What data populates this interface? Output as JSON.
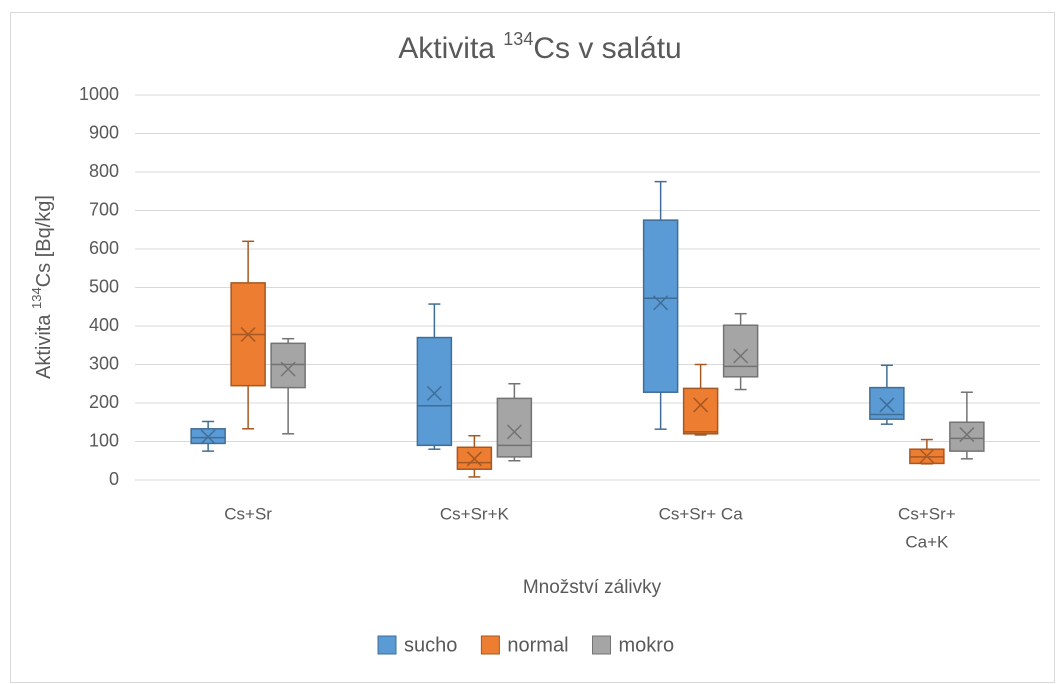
{
  "chart_data": {
    "type": "box",
    "title": {
      "text": "Aktivita ",
      "sup": "134",
      "rest": "Cs v salátu"
    },
    "y_label": {
      "text": "Aktivita ",
      "sup": "134",
      "rest": "Cs [Bq/kg]"
    },
    "x_label": "Množství zálivky",
    "categories": [
      [
        "Cs+Sr"
      ],
      [
        "Cs+Sr+K"
      ],
      [
        "Cs+Sr+  Ca"
      ],
      [
        "Cs+Sr+",
        "Ca+K"
      ]
    ],
    "ylim": [
      0,
      1000
    ],
    "yticks": [
      0,
      100,
      200,
      300,
      400,
      500,
      600,
      700,
      800,
      900,
      1000
    ],
    "grid": true,
    "legend": "bottom",
    "series": [
      {
        "name": "sucho",
        "color": "#5b9bd5",
        "min": [
          75,
          80,
          132,
          145
        ],
        "q1": [
          95,
          90,
          228,
          158
        ],
        "median": [
          110,
          193,
          472,
          170
        ],
        "q3": [
          133,
          370,
          675,
          240
        ],
        "max": [
          152,
          457,
          775,
          298
        ],
        "mean": [
          112,
          225,
          460,
          195
        ]
      },
      {
        "name": "normal",
        "color": "#ed7d31",
        "min": [
          133,
          8,
          117,
          42
        ],
        "q1": [
          245,
          28,
          120,
          43
        ],
        "median": [
          378,
          45,
          125,
          60
        ],
        "q3": [
          512,
          85,
          238,
          80
        ],
        "max": [
          620,
          115,
          300,
          105
        ],
        "mean": [
          378,
          55,
          195,
          62
        ]
      },
      {
        "name": "mokro",
        "color": "#a5a5a5",
        "min": [
          120,
          50,
          235,
          55
        ],
        "q1": [
          240,
          60,
          268,
          75
        ],
        "median": [
          300,
          90,
          295,
          108
        ],
        "q3": [
          355,
          212,
          402,
          150
        ],
        "max": [
          367,
          250,
          432,
          228
        ],
        "mean": [
          288,
          125,
          322,
          118
        ]
      }
    ]
  }
}
